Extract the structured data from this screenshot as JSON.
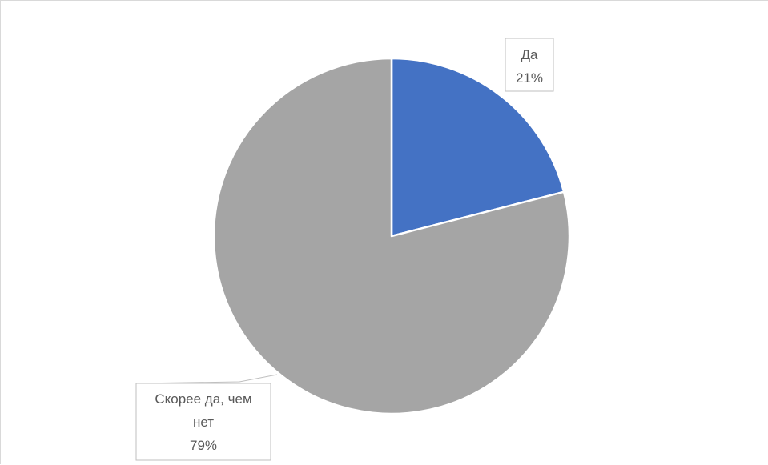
{
  "chart_data": {
    "type": "pie",
    "categories": [
      "Да",
      "Скорее да, чем нет"
    ],
    "values": [
      21,
      79
    ],
    "colors": [
      "#4472c4",
      "#a5a5a5"
    ],
    "data_labels": [
      {
        "category": "Да",
        "value": "21%"
      },
      {
        "category": "Скорее да, чем нет",
        "category_lines": [
          "Скорее да, чем",
          "нет"
        ],
        "value": "79%"
      }
    ],
    "title": "",
    "legend": "none"
  }
}
